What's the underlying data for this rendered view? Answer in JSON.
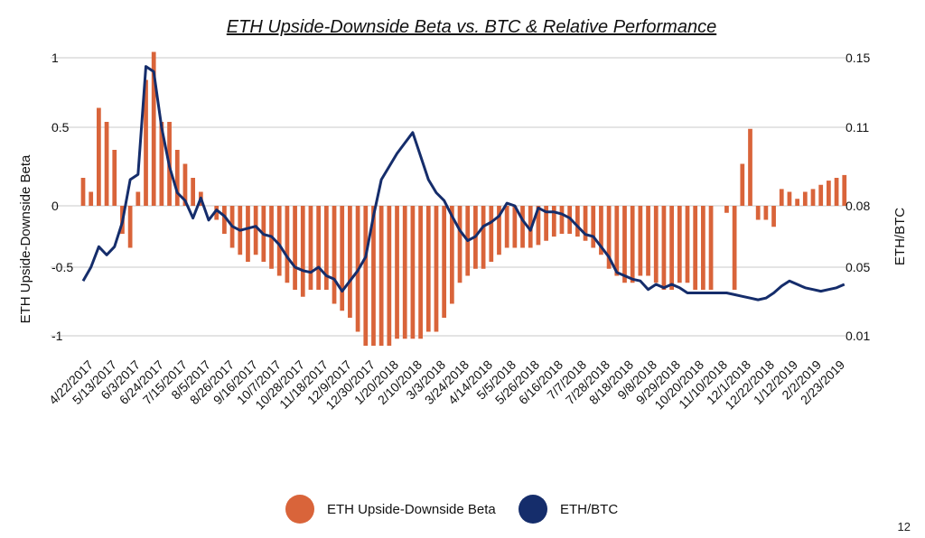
{
  "page": {
    "page_number": "12"
  },
  "colors": {
    "beta": "#D9643A",
    "ratio": "#152D6B",
    "grid": "#C8C8C8"
  },
  "chart_data": {
    "type": "bar+line",
    "title": "ETH Upside-Downside Beta vs. BTC & Relative Performance",
    "y_left_label": "ETH Upside-Downside Beta",
    "y_right_label": "ETH/BTC",
    "y_left_ticks": [
      "1",
      "0.5",
      "0",
      "-0.5",
      "-1"
    ],
    "y_right_ticks": [
      "0.15",
      "0.11",
      "0.08",
      "0.05",
      "0.01"
    ],
    "ylim_left": [
      -1.1,
      1.1
    ],
    "legend": [
      "ETH Upside-Downside Beta",
      "ETH/BTC"
    ],
    "legend_position": "bottom",
    "grid": true,
    "x_start": "4/22/2017",
    "x_end": "3/3/2019",
    "x_tick_labels": [
      "4/22/2017",
      "5/13/2017",
      "6/3/2017",
      "6/24/2017",
      "7/15/2017",
      "8/5/2017",
      "8/26/2017",
      "9/16/2017",
      "10/7/2017",
      "10/28/2017",
      "11/18/2017",
      "12/9/2017",
      "12/30/2017",
      "1/20/2018",
      "2/10/2018",
      "3/3/2018",
      "3/24/2018",
      "4/14/2018",
      "5/5/2018",
      "5/26/2018",
      "6/16/2018",
      "7/7/2018",
      "7/28/2018",
      "8/18/2018",
      "9/8/2018",
      "9/29/2018",
      "10/20/2018",
      "11/10/2018",
      "12/1/2018",
      "12/22/2018",
      "1/12/2019",
      "2/2/2019",
      "2/23/2019"
    ],
    "beta_series": {
      "name": "ETH Upside-Downside Beta",
      "x": [
        "4/22/2017",
        "4/29/2017",
        "5/6/2017",
        "5/13/2017",
        "5/20/2017",
        "5/27/2017",
        "6/3/2017",
        "6/10/2017",
        "6/17/2017",
        "6/24/2017",
        "7/1/2017",
        "7/8/2017",
        "7/15/2017",
        "7/22/2017",
        "7/29/2017",
        "8/5/2017",
        "8/12/2017",
        "8/19/2017",
        "8/26/2017",
        "9/2/2017",
        "9/9/2017",
        "9/16/2017",
        "9/23/2017",
        "9/30/2017",
        "10/7/2017",
        "10/14/2017",
        "10/21/2017",
        "10/28/2017",
        "11/4/2017",
        "11/11/2017",
        "11/18/2017",
        "11/25/2017",
        "12/2/2017",
        "12/9/2017",
        "12/16/2017",
        "12/23/2017",
        "12/30/2017",
        "1/6/2018",
        "1/13/2018",
        "1/20/2018",
        "1/27/2018",
        "2/3/2018",
        "2/10/2018",
        "2/17/2018",
        "2/24/2018",
        "3/3/2018",
        "3/10/2018",
        "3/17/2018",
        "3/24/2018",
        "3/31/2018",
        "4/7/2018",
        "4/14/2018",
        "4/21/2018",
        "4/28/2018",
        "5/5/2018",
        "5/12/2018",
        "5/19/2018",
        "5/26/2018",
        "6/2/2018",
        "6/9/2018",
        "6/16/2018",
        "6/23/2018",
        "6/30/2018",
        "7/7/2018",
        "7/14/2018",
        "7/21/2018",
        "7/28/2018",
        "8/4/2018",
        "8/11/2018",
        "8/18/2018",
        "8/25/2018",
        "9/1/2018",
        "9/8/2018",
        "9/15/2018",
        "9/22/2018",
        "9/29/2018",
        "10/6/2018",
        "10/13/2018",
        "10/20/2018",
        "10/27/2018",
        "11/3/2018",
        "11/10/2018",
        "11/17/2018",
        "11/24/2018",
        "12/1/2018",
        "12/8/2018",
        "12/15/2018",
        "12/22/2018",
        "12/29/2018",
        "1/5/2019",
        "1/12/2019",
        "1/19/2019",
        "1/26/2019",
        "2/2/2019",
        "2/9/2019",
        "2/16/2019",
        "2/23/2019",
        "3/2/2019"
      ],
      "values": [
        0.2,
        0.1,
        0.7,
        0.6,
        0.4,
        -0.2,
        -0.3,
        0.1,
        0.9,
        1.1,
        0.6,
        0.6,
        0.4,
        0.3,
        0.2,
        0.1,
        0.0,
        -0.1,
        -0.2,
        -0.3,
        -0.35,
        -0.4,
        -0.35,
        -0.4,
        -0.45,
        -0.5,
        -0.55,
        -0.6,
        -0.65,
        -0.6,
        -0.6,
        -0.6,
        -0.7,
        -0.75,
        -0.8,
        -0.9,
        -1.0,
        -1.0,
        -1.0,
        -1.0,
        -0.95,
        -0.95,
        -0.95,
        -0.95,
        -0.9,
        -0.9,
        -0.8,
        -0.7,
        -0.55,
        -0.5,
        -0.45,
        -0.45,
        -0.4,
        -0.35,
        -0.3,
        -0.3,
        -0.3,
        -0.3,
        -0.28,
        -0.25,
        -0.22,
        -0.2,
        -0.2,
        -0.22,
        -0.25,
        -0.3,
        -0.35,
        -0.45,
        -0.5,
        -0.55,
        -0.55,
        -0.5,
        -0.5,
        -0.55,
        -0.6,
        -0.6,
        -0.55,
        -0.55,
        -0.6,
        -0.6,
        -0.6,
        0.0,
        -0.05,
        -0.6,
        0.3,
        0.55,
        -0.1,
        -0.1,
        -0.15,
        0.12,
        0.1,
        0.05,
        0.1,
        0.12,
        0.15,
        0.18,
        0.2,
        0.22
      ]
    },
    "ratio_series": {
      "name": "ETH/BTC",
      "x": [
        "4/22/2017",
        "4/29/2017",
        "5/6/2017",
        "5/13/2017",
        "5/20/2017",
        "5/27/2017",
        "6/3/2017",
        "6/10/2017",
        "6/17/2017",
        "6/24/2017",
        "7/1/2017",
        "7/8/2017",
        "7/15/2017",
        "7/22/2017",
        "7/29/2017",
        "8/5/2017",
        "8/12/2017",
        "8/19/2017",
        "8/26/2017",
        "9/2/2017",
        "9/9/2017",
        "9/16/2017",
        "9/23/2017",
        "9/30/2017",
        "10/7/2017",
        "10/14/2017",
        "10/21/2017",
        "10/28/2017",
        "11/4/2017",
        "11/11/2017",
        "11/18/2017",
        "11/25/2017",
        "12/2/2017",
        "12/9/2017",
        "12/16/2017",
        "12/23/2017",
        "12/30/2017",
        "1/6/2018",
        "1/13/2018",
        "1/20/2018",
        "1/27/2018",
        "2/3/2018",
        "2/10/2018",
        "2/17/2018",
        "2/24/2018",
        "3/3/2018",
        "3/10/2018",
        "3/17/2018",
        "3/24/2018",
        "3/31/2018",
        "4/7/2018",
        "4/14/2018",
        "4/21/2018",
        "4/28/2018",
        "5/5/2018",
        "5/12/2018",
        "5/19/2018",
        "5/26/2018",
        "6/2/2018",
        "6/9/2018",
        "6/16/2018",
        "6/23/2018",
        "6/30/2018",
        "7/7/2018",
        "7/14/2018",
        "7/21/2018",
        "7/28/2018",
        "8/4/2018",
        "8/11/2018",
        "8/18/2018",
        "8/25/2018",
        "9/1/2018",
        "9/8/2018",
        "9/15/2018",
        "9/22/2018",
        "9/29/2018",
        "10/6/2018",
        "10/13/2018",
        "10/20/2018",
        "10/27/2018",
        "11/3/2018",
        "11/10/2018",
        "11/17/2018",
        "11/24/2018",
        "12/1/2018",
        "12/8/2018",
        "12/15/2018",
        "12/22/2018",
        "12/29/2018",
        "1/5/2019",
        "1/12/2019",
        "1/19/2019",
        "1/26/2019",
        "2/2/2019",
        "2/9/2019",
        "2/16/2019",
        "2/23/2019",
        "3/2/2019"
      ],
      "values": [
        0.042,
        0.05,
        0.06,
        0.056,
        0.06,
        0.072,
        0.09,
        0.092,
        0.145,
        0.142,
        0.11,
        0.095,
        0.085,
        0.082,
        0.074,
        0.083,
        0.073,
        0.078,
        0.075,
        0.07,
        0.068,
        0.069,
        0.07,
        0.066,
        0.065,
        0.061,
        0.055,
        0.05,
        0.048,
        0.047,
        0.05,
        0.045,
        0.043,
        0.036,
        0.042,
        0.048,
        0.055,
        0.075,
        0.09,
        0.095,
        0.1,
        0.104,
        0.108,
        0.099,
        0.09,
        0.085,
        0.082,
        0.075,
        0.068,
        0.063,
        0.065,
        0.07,
        0.072,
        0.075,
        0.081,
        0.08,
        0.073,
        0.068,
        0.079,
        0.077,
        0.077,
        0.076,
        0.074,
        0.07,
        0.066,
        0.065,
        0.06,
        0.055,
        0.047,
        0.045,
        0.043,
        0.042,
        0.037,
        0.04,
        0.038,
        0.04,
        0.038,
        0.035,
        0.035,
        0.035,
        0.035,
        0.035,
        0.035,
        0.034,
        0.033,
        0.032,
        0.031,
        0.032,
        0.035,
        0.039,
        0.042,
        0.04,
        0.038,
        0.037,
        0.036,
        0.037,
        0.038,
        0.04
      ]
    }
  },
  "legend": {
    "beta_label": "ETH Upside-Downside Beta",
    "ratio_label": "ETH/BTC"
  }
}
